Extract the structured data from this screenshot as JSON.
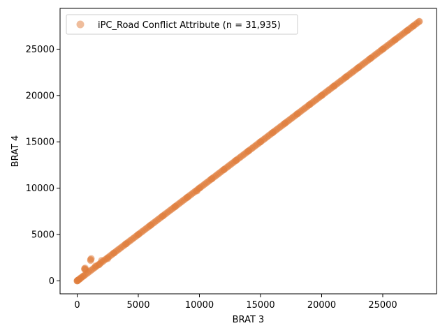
{
  "chart_data": {
    "type": "scatter",
    "title": "",
    "xlabel": "BRAT 3",
    "ylabel": "BRAT 4",
    "xlim": [
      -1400,
      29400
    ],
    "ylim": [
      -1400,
      29400
    ],
    "x_ticks": [
      0,
      5000,
      10000,
      15000,
      20000,
      25000
    ],
    "y_ticks": [
      0,
      5000,
      10000,
      15000,
      20000,
      25000
    ],
    "grid": false,
    "legend_position": "top-left",
    "series": [
      {
        "name": "iPC_Road Conflict Attribute (n = 31,935)",
        "color": "#e07b39",
        "alpha": 0.5,
        "marker": "circle",
        "points": [
          [
            0,
            0
          ],
          [
            20,
            10
          ],
          [
            50,
            60
          ],
          [
            100,
            120
          ],
          [
            200,
            180
          ],
          [
            300,
            320
          ],
          [
            500,
            520
          ],
          [
            600,
            1300
          ],
          [
            620,
            1250
          ],
          [
            650,
            1380
          ],
          [
            700,
            1200
          ],
          [
            1100,
            2300
          ],
          [
            1150,
            2400
          ],
          [
            1100,
            2200
          ],
          [
            1500,
            1600
          ],
          [
            2000,
            2200
          ],
          [
            1800,
            1750
          ],
          [
            2500,
            2400
          ],
          [
            3000,
            3000
          ],
          [
            4000,
            4000
          ],
          [
            5000,
            5000
          ],
          [
            6000,
            6000
          ],
          [
            7000,
            7000
          ],
          [
            8000,
            8000
          ],
          [
            9000,
            9000
          ],
          [
            9800,
            9700
          ],
          [
            10000,
            10000
          ],
          [
            11000,
            11000
          ],
          [
            12000,
            12000
          ],
          [
            13000,
            13000
          ],
          [
            14000,
            14000
          ],
          [
            15000,
            15000
          ],
          [
            16000,
            16000
          ],
          [
            17000,
            17000
          ],
          [
            18000,
            18000
          ],
          [
            19000,
            19000
          ],
          [
            20000,
            20000
          ],
          [
            21000,
            21000
          ],
          [
            22000,
            22000
          ],
          [
            23000,
            23000
          ],
          [
            24000,
            24000
          ],
          [
            25000,
            25000
          ],
          [
            26000,
            26000
          ],
          [
            27000,
            27000
          ],
          [
            27500,
            27500
          ],
          [
            28000,
            28000
          ]
        ]
      }
    ]
  }
}
